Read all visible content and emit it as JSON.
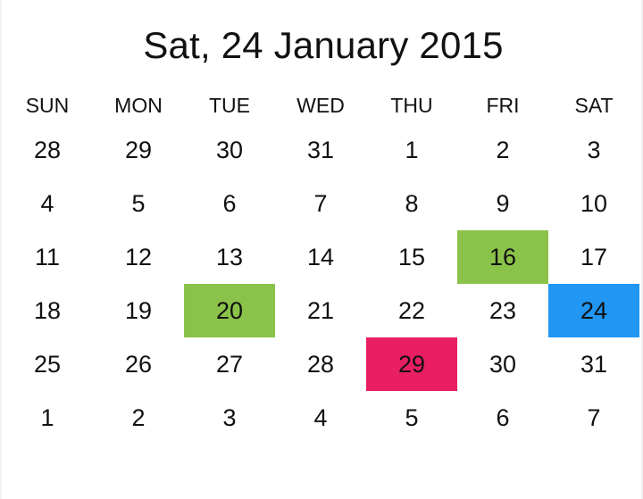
{
  "header": {
    "title": "Sat, 24 January 2015"
  },
  "calendar": {
    "weekdays": [
      "SUN",
      "MON",
      "TUE",
      "WED",
      "THU",
      "FRI",
      "SAT"
    ],
    "weeks": [
      [
        "28",
        "29",
        "30",
        "31",
        "1",
        "2",
        "3"
      ],
      [
        "4",
        "5",
        "6",
        "7",
        "8",
        "9",
        "10"
      ],
      [
        "11",
        "12",
        "13",
        "14",
        "15",
        "16",
        "17"
      ],
      [
        "18",
        "19",
        "20",
        "21",
        "22",
        "23",
        "24"
      ],
      [
        "25",
        "26",
        "27",
        "28",
        "29",
        "30",
        "31"
      ],
      [
        "1",
        "2",
        "3",
        "4",
        "5",
        "6",
        "7"
      ]
    ],
    "highlights": [
      {
        "week": 2,
        "day": 5,
        "color": "#8bc34a"
      },
      {
        "week": 3,
        "day": 2,
        "color": "#8bc34a"
      },
      {
        "week": 3,
        "day": 6,
        "color": "#2196f3"
      },
      {
        "week": 4,
        "day": 4,
        "color": "#e91e63"
      }
    ]
  }
}
